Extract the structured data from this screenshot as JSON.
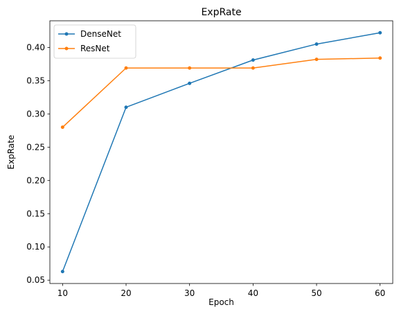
{
  "chart_data": {
    "type": "line",
    "title": "ExpRate",
    "xlabel": "Epoch",
    "ylabel": "ExpRate",
    "x": [
      10,
      20,
      30,
      40,
      50,
      60
    ],
    "xlim": [
      8,
      62
    ],
    "ylim": [
      0.045,
      0.44
    ],
    "xticks": [
      10,
      20,
      30,
      40,
      50,
      60
    ],
    "yticks": [
      0.05,
      0.1,
      0.15,
      0.2,
      0.25,
      0.3,
      0.35,
      0.4
    ],
    "ytick_labels": [
      "0.05",
      "0.10",
      "0.15",
      "0.20",
      "0.25",
      "0.30",
      "0.35",
      "0.40"
    ],
    "grid": false,
    "legend_position": "top-left",
    "series": [
      {
        "name": "DenseNet",
        "color": "#1f77b4",
        "values": [
          0.063,
          0.31,
          0.346,
          0.381,
          0.405,
          0.422
        ]
      },
      {
        "name": "ResNet",
        "color": "#ff7f0e",
        "values": [
          0.28,
          0.369,
          0.369,
          0.369,
          0.382,
          0.384
        ]
      }
    ]
  }
}
